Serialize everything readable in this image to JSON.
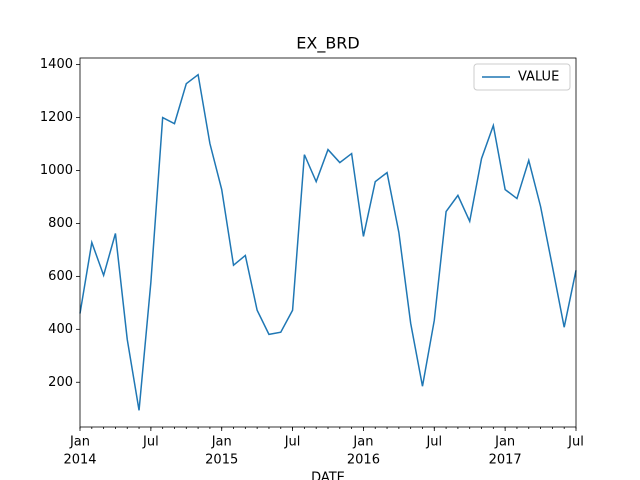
{
  "chart_data": {
    "type": "line",
    "title": "EX_BRD",
    "xlabel": "DATE",
    "x": [
      "2014-01",
      "2014-02",
      "2014-03",
      "2014-04",
      "2014-05",
      "2014-06",
      "2014-07",
      "2014-08",
      "2014-09",
      "2014-10",
      "2014-11",
      "2014-12",
      "2015-01",
      "2015-02",
      "2015-03",
      "2015-04",
      "2015-05",
      "2015-06",
      "2015-07",
      "2015-08",
      "2015-09",
      "2015-10",
      "2015-11",
      "2015-12",
      "2016-01",
      "2016-02",
      "2016-03",
      "2016-04",
      "2016-05",
      "2016-06",
      "2016-07",
      "2016-08",
      "2016-09",
      "2016-10",
      "2016-11",
      "2016-12",
      "2017-01",
      "2017-02",
      "2017-03",
      "2017-04",
      "2017-05",
      "2017-06",
      "2017-07"
    ],
    "series": [
      {
        "name": "VALUE",
        "color": "#1f77b4",
        "values": [
          460,
          728,
          604,
          762,
          362,
          94,
          577,
          1200,
          1177,
          1328,
          1362,
          1102,
          928,
          642,
          679,
          472,
          381,
          389,
          472,
          1060,
          958,
          1079,
          1030,
          1064,
          751,
          958,
          992,
          766,
          423,
          185,
          434,
          845,
          906,
          808,
          1045,
          1170,
          928,
          894,
          1038,
          864,
          638,
          408,
          623
        ]
      }
    ],
    "xlim": [
      "2014-01",
      "2017-07"
    ],
    "xticks": [
      {
        "value": "2014-01",
        "label": "Jan",
        "sublabel": "2014"
      },
      {
        "value": "2014-07",
        "label": "Jul"
      },
      {
        "value": "2015-01",
        "label": "Jan",
        "sublabel": "2015"
      },
      {
        "value": "2015-07",
        "label": "Jul"
      },
      {
        "value": "2016-01",
        "label": "Jan",
        "sublabel": "2016"
      },
      {
        "value": "2016-07",
        "label": "Jul"
      },
      {
        "value": "2017-01",
        "label": "Jan",
        "sublabel": "2017"
      },
      {
        "value": "2017-07",
        "label": "Jul"
      }
    ],
    "ylim": [
      31,
      1425
    ],
    "yticks": [
      200,
      400,
      600,
      800,
      1000,
      1200,
      1400
    ],
    "legend": "upper right"
  }
}
